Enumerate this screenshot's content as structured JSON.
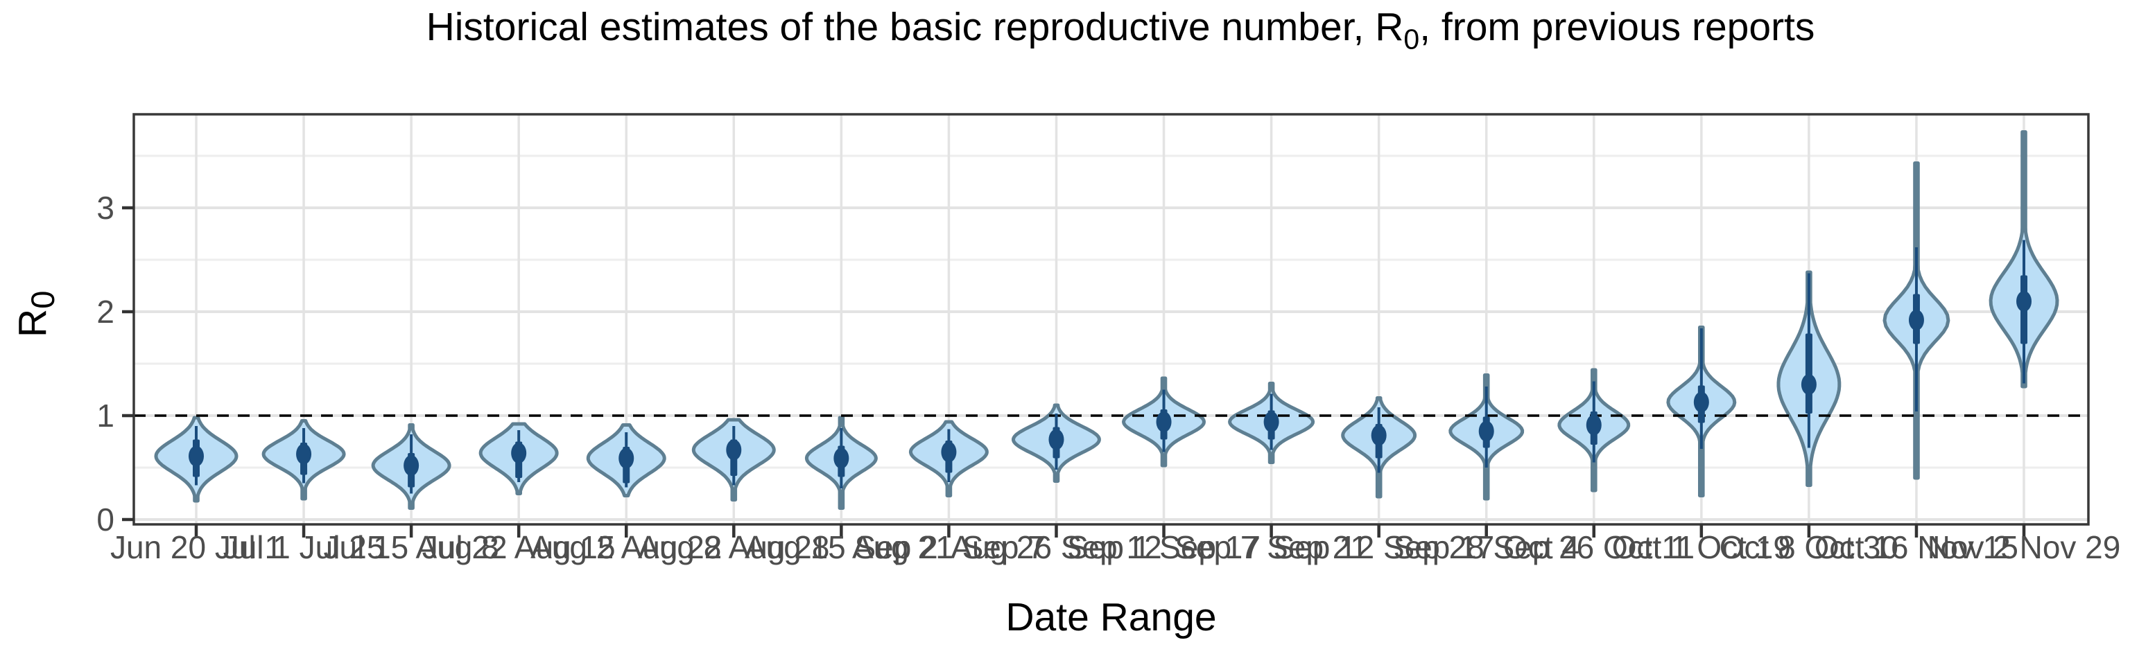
{
  "title": {
    "prefix": "Historical estimates of the basic reproductive number, R",
    "subscript": "0",
    "suffix": ", from previous reports"
  },
  "chart_data": {
    "type": "violin",
    "title": "Historical estimates of the basic reproductive number, R0, from previous reports",
    "xlabel": "Date Range",
    "ylabel": {
      "prefix": "R",
      "subscript": "0"
    },
    "yticks": [
      0,
      1,
      2,
      3
    ],
    "ylim": [
      -0.05,
      3.95
    ],
    "grid": "major and minor horizontal, major vertical at each category",
    "legend": "none",
    "reference_line": {
      "y": 1,
      "style": "dashed",
      "color": "#000000"
    },
    "categories": [
      "Jun 20 Jul 1",
      "Jul 1 Jul 25",
      "Jul 15 Aug 8",
      "Jul 22 Aug 15",
      "Aug 2 Aug 22",
      "Aug 8 Aug 28",
      "Aug 15 Sep 2",
      "Aug 21 Sep 7",
      "Aug 26 Sep 12",
      "Sep 1 Sep 17",
      "Sep 7 Sep 21",
      "Sep 12 Sep 28",
      "Sep 17 Oct 4",
      "Sep 26 Oct 11",
      "Oct 1 Oct 19",
      "Oct 8 Oct 30",
      "Oct 16 Nov 15",
      "Nov 2 Nov 29"
    ],
    "series": [
      {
        "label": "Jun 20 Jul 1",
        "median": 0.61,
        "ci50": [
          0.41,
          0.77
        ],
        "ci95": [
          0.33,
          0.9
        ],
        "range": [
          0.18,
          0.98
        ],
        "halfwidth": 58
      },
      {
        "label": "Jul 1 Jul 25",
        "median": 0.63,
        "ci50": [
          0.43,
          0.74
        ],
        "ci95": [
          0.35,
          0.88
        ],
        "range": [
          0.2,
          0.95
        ],
        "halfwidth": 58
      },
      {
        "label": "Jul 15 Aug 8",
        "median": 0.52,
        "ci50": [
          0.31,
          0.64
        ],
        "ci95": [
          0.25,
          0.82
        ],
        "range": [
          0.11,
          0.91
        ],
        "halfwidth": 55
      },
      {
        "label": "Jul 22 Aug 15",
        "median": 0.64,
        "ci50": [
          0.4,
          0.75
        ],
        "ci95": [
          0.36,
          0.86
        ],
        "range": [
          0.25,
          0.92
        ],
        "halfwidth": 55
      },
      {
        "label": "Aug 2 Aug 22",
        "median": 0.59,
        "ci50": [
          0.35,
          0.7
        ],
        "ci95": [
          0.31,
          0.84
        ],
        "range": [
          0.23,
          0.91
        ],
        "halfwidth": 55
      },
      {
        "label": "Aug 8 Aug 28",
        "median": 0.67,
        "ci50": [
          0.42,
          0.77
        ],
        "ci95": [
          0.33,
          0.9
        ],
        "range": [
          0.19,
          0.96
        ],
        "halfwidth": 58
      },
      {
        "label": "Aug 15 Sep 2",
        "median": 0.59,
        "ci50": [
          0.41,
          0.71
        ],
        "ci95": [
          0.3,
          0.88
        ],
        "range": [
          0.11,
          0.98
        ],
        "halfwidth": 50
      },
      {
        "label": "Aug 21 Sep 7",
        "median": 0.65,
        "ci50": [
          0.45,
          0.76
        ],
        "ci95": [
          0.36,
          0.87
        ],
        "range": [
          0.23,
          0.94
        ],
        "halfwidth": 55
      },
      {
        "label": "Aug 26 Sep 12",
        "median": 0.77,
        "ci50": [
          0.59,
          0.89
        ],
        "ci95": [
          0.48,
          1.02
        ],
        "range": [
          0.37,
          1.1
        ],
        "halfwidth": 62
      },
      {
        "label": "Sep 1 Sep 17",
        "median": 0.94,
        "ci50": [
          0.77,
          1.06
        ],
        "ci95": [
          0.65,
          1.25
        ],
        "range": [
          0.52,
          1.36
        ],
        "halfwidth": 58
      },
      {
        "label": "Sep 7 Sep 21",
        "median": 0.94,
        "ci50": [
          0.77,
          1.05
        ],
        "ci95": [
          0.67,
          1.21
        ],
        "range": [
          0.55,
          1.31
        ],
        "halfwidth": 60
      },
      {
        "label": "Sep 12 Sep 28",
        "median": 0.81,
        "ci50": [
          0.59,
          0.92
        ],
        "ci95": [
          0.45,
          1.08
        ],
        "range": [
          0.22,
          1.17
        ],
        "halfwidth": 52
      },
      {
        "label": "Sep 17 Oct 4",
        "median": 0.85,
        "ci50": [
          0.69,
          0.99
        ],
        "ci95": [
          0.5,
          1.28
        ],
        "range": [
          0.2,
          1.39
        ],
        "halfwidth": 52
      },
      {
        "label": "Sep 26 Oct 11",
        "median": 0.91,
        "ci50": [
          0.72,
          1.04
        ],
        "ci95": [
          0.55,
          1.33
        ],
        "range": [
          0.28,
          1.44
        ],
        "halfwidth": 50
      },
      {
        "label": "Oct 1 Oct 19",
        "median": 1.13,
        "ci50": [
          0.93,
          1.29
        ],
        "ci95": [
          0.68,
          1.84
        ],
        "range": [
          0.23,
          1.85
        ],
        "halfwidth": 48
      },
      {
        "label": "Oct 8 Oct 30",
        "median": 1.3,
        "ci50": [
          1.02,
          1.79
        ],
        "ci95": [
          0.69,
          2.37
        ],
        "range": [
          0.33,
          2.38
        ],
        "halfwidth": 44
      },
      {
        "label": "Oct 16 Nov 15",
        "median": 1.92,
        "ci50": [
          1.69,
          2.17
        ],
        "ci95": [
          1.04,
          2.62
        ],
        "range": [
          0.4,
          3.43
        ],
        "halfwidth": 46
      },
      {
        "label": "Nov 2 Nov 29",
        "median": 2.1,
        "ci50": [
          1.69,
          2.35
        ],
        "ci95": [
          1.31,
          2.69
        ],
        "range": [
          1.28,
          3.73
        ],
        "halfwidth": 48
      }
    ],
    "colors": {
      "violin_fill": "#bbdef6",
      "violin_outline": "#5e7f92",
      "point_interval": "#1a4c7d",
      "reference_line": "#000000",
      "grid_major": "#e3e3e3",
      "grid_minor": "#eeeeee",
      "panel_border": "#383838",
      "axis_tick": "#333333",
      "tick_text": "#4d4d4d",
      "title_text": "#000000"
    }
  }
}
